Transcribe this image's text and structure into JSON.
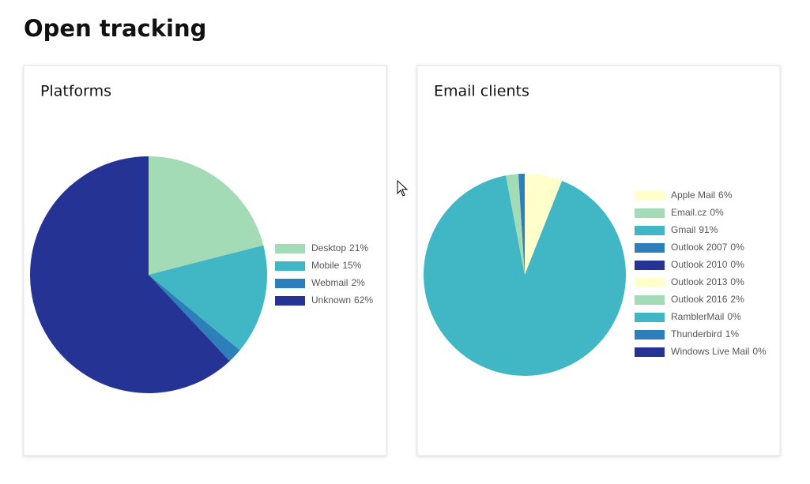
{
  "header": {
    "title": "Open tracking"
  },
  "chart_data": [
    {
      "type": "pie",
      "title": "Platforms",
      "categories": [
        "Desktop",
        "Mobile",
        "Webmail",
        "Unknown"
      ],
      "values": [
        21,
        15,
        2,
        62
      ],
      "value_labels": [
        "21%",
        "15%",
        "2%",
        "62%"
      ],
      "colors": [
        "#a3dbb7",
        "#41b6c4",
        "#2c7fb8",
        "#253494"
      ],
      "legend": "right"
    },
    {
      "type": "pie",
      "title": "Email clients",
      "categories": [
        "Apple Mail",
        "Email.cz",
        "Gmail",
        "Outlook 2007",
        "Outlook 2010",
        "Outlook 2013",
        "Outlook 2016",
        "RamblerMail",
        "Thunderbird",
        "Windows Live Mail"
      ],
      "values": [
        6,
        0,
        91,
        0,
        0,
        0,
        2,
        0,
        1,
        0
      ],
      "value_labels": [
        "6%",
        "0%",
        "91%",
        "0%",
        "0%",
        "0%",
        "2%",
        "0%",
        "1%",
        "0%"
      ],
      "colors": [
        "#ffffcc",
        "#a3dbb7",
        "#41b6c4",
        "#2c7fb8",
        "#253494",
        "#ffffcc",
        "#a3dbb7",
        "#41b6c4",
        "#2c7fb8",
        "#253494"
      ],
      "legend": "right"
    }
  ]
}
